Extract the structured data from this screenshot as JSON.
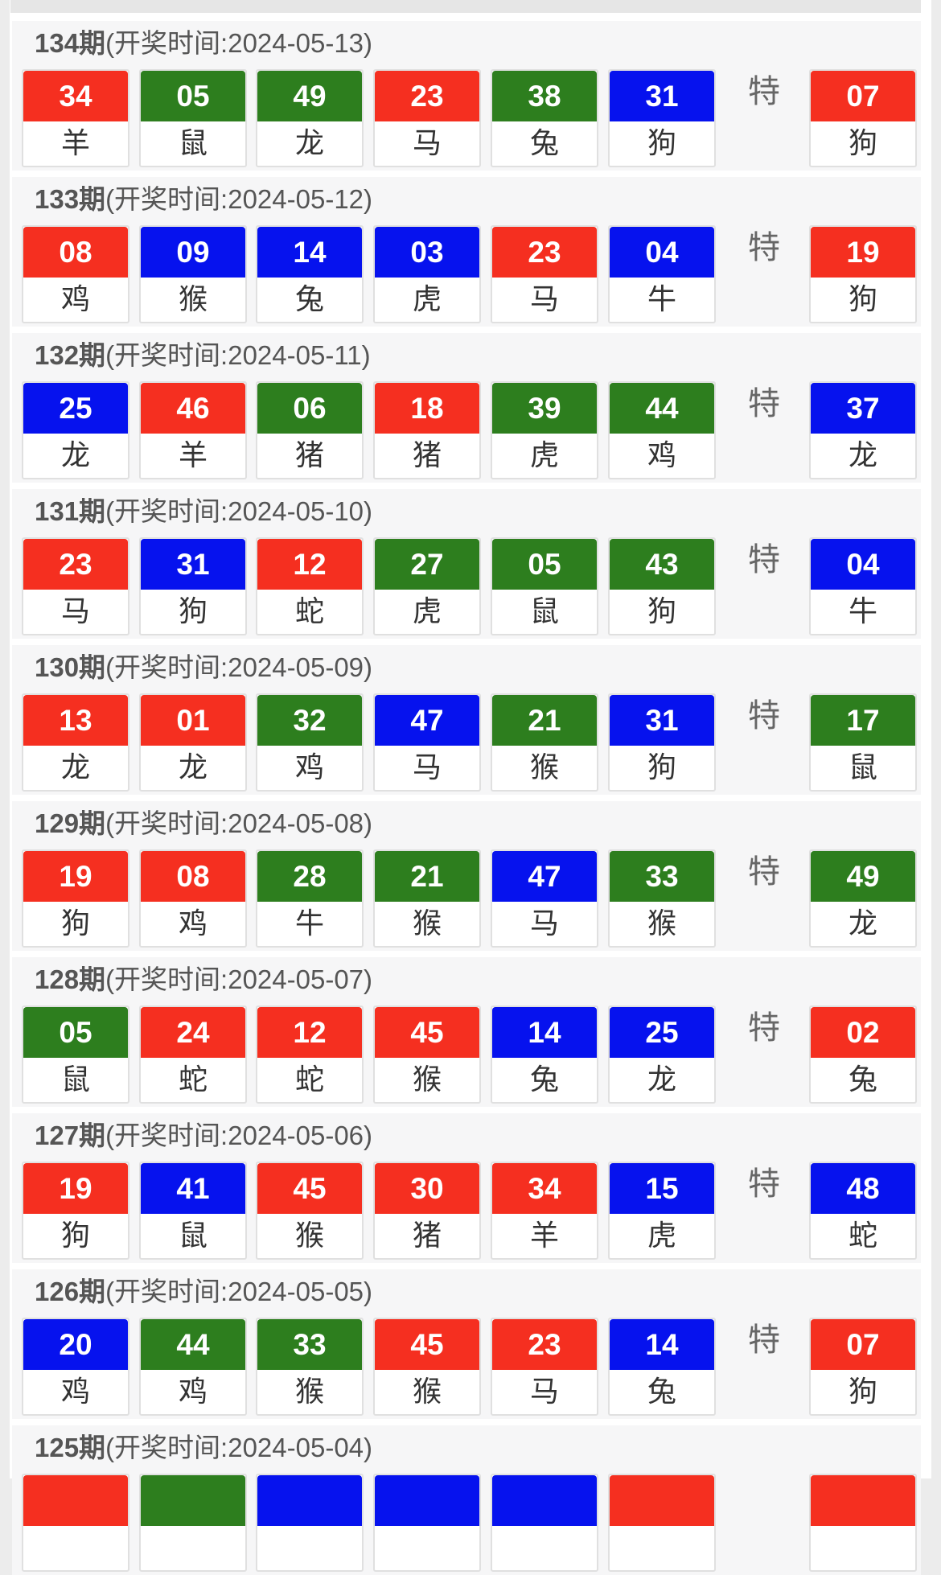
{
  "colors": {
    "red": "#f52f20",
    "green": "#2d7e1e",
    "blue": "#0612ee"
  },
  "special_label": "特",
  "draws": [
    {
      "issue": "134期",
      "time": "(开奖时间:2024-05-13)",
      "balls": [
        [
          "34",
          "羊",
          "red"
        ],
        [
          "05",
          "鼠",
          "green"
        ],
        [
          "49",
          "龙",
          "green"
        ],
        [
          "23",
          "马",
          "red"
        ],
        [
          "38",
          "兔",
          "green"
        ],
        [
          "31",
          "狗",
          "blue"
        ]
      ],
      "special": [
        "07",
        "狗",
        "red"
      ]
    },
    {
      "issue": "133期",
      "time": "(开奖时间:2024-05-12)",
      "balls": [
        [
          "08",
          "鸡",
          "red"
        ],
        [
          "09",
          "猴",
          "blue"
        ],
        [
          "14",
          "兔",
          "blue"
        ],
        [
          "03",
          "虎",
          "blue"
        ],
        [
          "23",
          "马",
          "red"
        ],
        [
          "04",
          "牛",
          "blue"
        ]
      ],
      "special": [
        "19",
        "狗",
        "red"
      ]
    },
    {
      "issue": "132期",
      "time": "(开奖时间:2024-05-11)",
      "balls": [
        [
          "25",
          "龙",
          "blue"
        ],
        [
          "46",
          "羊",
          "red"
        ],
        [
          "06",
          "猪",
          "green"
        ],
        [
          "18",
          "猪",
          "red"
        ],
        [
          "39",
          "虎",
          "green"
        ],
        [
          "44",
          "鸡",
          "green"
        ]
      ],
      "special": [
        "37",
        "龙",
        "blue"
      ]
    },
    {
      "issue": "131期",
      "time": "(开奖时间:2024-05-10)",
      "balls": [
        [
          "23",
          "马",
          "red"
        ],
        [
          "31",
          "狗",
          "blue"
        ],
        [
          "12",
          "蛇",
          "red"
        ],
        [
          "27",
          "虎",
          "green"
        ],
        [
          "05",
          "鼠",
          "green"
        ],
        [
          "43",
          "狗",
          "green"
        ]
      ],
      "special": [
        "04",
        "牛",
        "blue"
      ]
    },
    {
      "issue": "130期",
      "time": "(开奖时间:2024-05-09)",
      "balls": [
        [
          "13",
          "龙",
          "red"
        ],
        [
          "01",
          "龙",
          "red"
        ],
        [
          "32",
          "鸡",
          "green"
        ],
        [
          "47",
          "马",
          "blue"
        ],
        [
          "21",
          "猴",
          "green"
        ],
        [
          "31",
          "狗",
          "blue"
        ]
      ],
      "special": [
        "17",
        "鼠",
        "green"
      ]
    },
    {
      "issue": "129期",
      "time": "(开奖时间:2024-05-08)",
      "balls": [
        [
          "19",
          "狗",
          "red"
        ],
        [
          "08",
          "鸡",
          "red"
        ],
        [
          "28",
          "牛",
          "green"
        ],
        [
          "21",
          "猴",
          "green"
        ],
        [
          "47",
          "马",
          "blue"
        ],
        [
          "33",
          "猴",
          "green"
        ]
      ],
      "special": [
        "49",
        "龙",
        "green"
      ]
    },
    {
      "issue": "128期",
      "time": "(开奖时间:2024-05-07)",
      "balls": [
        [
          "05",
          "鼠",
          "green"
        ],
        [
          "24",
          "蛇",
          "red"
        ],
        [
          "12",
          "蛇",
          "red"
        ],
        [
          "45",
          "猴",
          "red"
        ],
        [
          "14",
          "兔",
          "blue"
        ],
        [
          "25",
          "龙",
          "blue"
        ]
      ],
      "special": [
        "02",
        "兔",
        "red"
      ]
    },
    {
      "issue": "127期",
      "time": "(开奖时间:2024-05-06)",
      "balls": [
        [
          "19",
          "狗",
          "red"
        ],
        [
          "41",
          "鼠",
          "blue"
        ],
        [
          "45",
          "猴",
          "red"
        ],
        [
          "30",
          "猪",
          "red"
        ],
        [
          "34",
          "羊",
          "red"
        ],
        [
          "15",
          "虎",
          "blue"
        ]
      ],
      "special": [
        "48",
        "蛇",
        "blue"
      ]
    },
    {
      "issue": "126期",
      "time": "(开奖时间:2024-05-05)",
      "balls": [
        [
          "20",
          "鸡",
          "blue"
        ],
        [
          "44",
          "鸡",
          "green"
        ],
        [
          "33",
          "猴",
          "green"
        ],
        [
          "45",
          "猴",
          "red"
        ],
        [
          "23",
          "马",
          "red"
        ],
        [
          "14",
          "兔",
          "blue"
        ]
      ],
      "special": [
        "07",
        "狗",
        "red"
      ]
    },
    {
      "issue": "125期",
      "time": "(开奖时间:2024-05-04)",
      "balls": [],
      "special": null
    }
  ]
}
